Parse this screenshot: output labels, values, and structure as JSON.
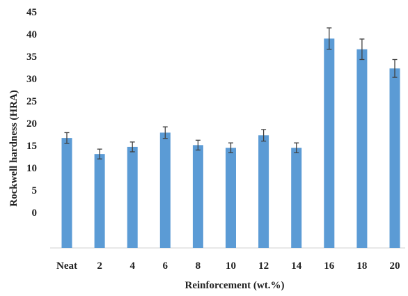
{
  "chart_data": {
    "type": "bar",
    "title": "",
    "xlabel": "Reinforcement (wt.%)",
    "ylabel": "Rockwell hardness (HRA)",
    "categories": [
      "Neat",
      "2",
      "4",
      "6",
      "8",
      "10",
      "12",
      "14",
      "16",
      "18",
      "20"
    ],
    "values": [
      16.7,
      13.1,
      14.7,
      17.9,
      15.1,
      14.5,
      17.3,
      14.5,
      39.0,
      36.6,
      32.3
    ],
    "errors": [
      1.2,
      1.1,
      1.1,
      1.3,
      1.1,
      1.1,
      1.3,
      1.1,
      2.4,
      2.3,
      2.0
    ],
    "y_ticks": [
      "45",
      "40",
      "35",
      "30",
      "25",
      "20",
      "15",
      "10",
      "5",
      "0"
    ],
    "ylim": [
      0,
      45
    ],
    "grid": false,
    "legend": "none",
    "bar_color": "#5B9BD5",
    "error_color": "#404040"
  }
}
